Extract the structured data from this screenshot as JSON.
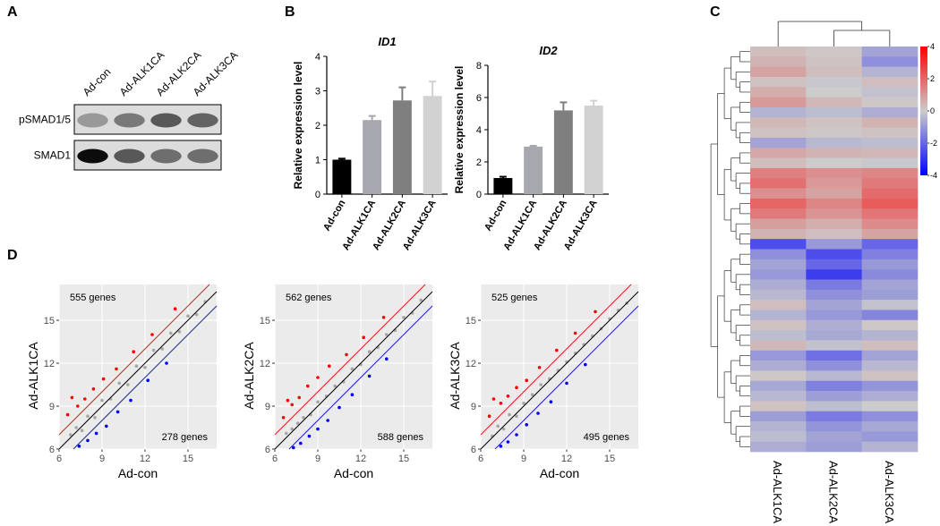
{
  "panel_labels": [
    "A",
    "B",
    "C",
    "D"
  ],
  "blot": {
    "lanes": [
      "Ad-con",
      "Ad-ALK1CA",
      "Ad-ALK2CA",
      "Ad-ALK3CA"
    ],
    "rows": [
      {
        "label": "pSMAD1/5",
        "intensity": [
          0.3,
          0.45,
          0.6,
          0.55
        ]
      },
      {
        "label": "SMAD1",
        "intensity": [
          0.95,
          0.6,
          0.5,
          0.5
        ]
      }
    ]
  },
  "chart_data": [
    {
      "type": "bar",
      "title": "ID1",
      "ylabel": "Relative expression level",
      "categories": [
        "Ad-con",
        "Ad-ALK1CA",
        "Ad-ALK2CA",
        "Ad-ALK3CA"
      ],
      "values": [
        1.0,
        2.15,
        2.72,
        2.85
      ],
      "errors": [
        0.03,
        0.12,
        0.38,
        0.42
      ],
      "colors": [
        "#000000",
        "#a7a7af",
        "#7f7f7f",
        "#d2d2d2"
      ],
      "ylim": [
        0,
        4
      ],
      "yticks": [
        0,
        1,
        2,
        3,
        4
      ]
    },
    {
      "type": "bar",
      "title": "ID2",
      "ylabel": "Relative expression level",
      "categories": [
        "Ad-con",
        "Ad-ALK1CA",
        "Ad-ALK2CA",
        "Ad-ALK3CA"
      ],
      "values": [
        1.0,
        2.95,
        5.2,
        5.5
      ],
      "errors": [
        0.08,
        0.05,
        0.5,
        0.3
      ],
      "colors": [
        "#000000",
        "#a7a7af",
        "#7f7f7f",
        "#d2d2d2"
      ],
      "ylim": [
        0,
        8
      ],
      "yticks": [
        0,
        2,
        4,
        6,
        8
      ]
    },
    {
      "type": "heatmap",
      "columns": [
        "Ad-ALK1CA",
        "Ad-ALK2CA",
        "Ad-ALK3CA"
      ],
      "zlim": [
        -4,
        4
      ],
      "zticks": [
        4,
        2,
        0,
        -2,
        -4
      ],
      "colors": [
        "#0000ff",
        "#cccccc",
        "#ff0000"
      ],
      "values": [
        [
          0.3,
          0.1,
          -0.8
        ],
        [
          0.5,
          0.2,
          -1.2
        ],
        [
          0.8,
          0.3,
          -0.5
        ],
        [
          0.2,
          -0.1,
          0.3
        ],
        [
          0.6,
          0.0,
          -0.2
        ],
        [
          1.0,
          0.4,
          0.1
        ],
        [
          -0.5,
          -0.3,
          -0.6
        ],
        [
          0.4,
          0.2,
          0.5
        ],
        [
          0.2,
          0.1,
          0.2
        ],
        [
          -0.8,
          -0.4,
          -0.3
        ],
        [
          0.7,
          0.5,
          0.4
        ],
        [
          0.3,
          0.0,
          -0.1
        ],
        [
          1.5,
          1.2,
          1.4
        ],
        [
          1.8,
          1.0,
          1.6
        ],
        [
          1.2,
          0.8,
          1.9
        ],
        [
          2.0,
          1.4,
          2.2
        ],
        [
          1.6,
          1.1,
          1.7
        ],
        [
          0.9,
          0.6,
          1.3
        ],
        [
          0.5,
          0.3,
          0.8
        ],
        [
          -2.5,
          -1.0,
          -2.0
        ],
        [
          -1.2,
          -2.5,
          -1.5
        ],
        [
          -0.8,
          -2.0,
          -1.0
        ],
        [
          -1.0,
          -2.8,
          -1.3
        ],
        [
          -0.6,
          -1.6,
          -0.8
        ],
        [
          -0.4,
          -1.2,
          -0.9
        ],
        [
          0.3,
          -0.8,
          -0.2
        ],
        [
          -0.5,
          -1.0,
          -1.4
        ],
        [
          0.2,
          -0.6,
          0.1
        ],
        [
          -0.3,
          -0.7,
          -0.5
        ],
        [
          0.4,
          -0.2,
          0.3
        ],
        [
          -1.0,
          -1.8,
          -0.8
        ],
        [
          -0.6,
          -1.2,
          -0.4
        ],
        [
          0.1,
          -0.4,
          0.2
        ],
        [
          -0.7,
          -1.5,
          -1.1
        ],
        [
          -0.4,
          -0.9,
          -0.6
        ],
        [
          0.2,
          -0.3,
          0.0
        ],
        [
          -0.9,
          -1.6,
          -1.2
        ],
        [
          -0.5,
          -1.1,
          -0.7
        ],
        [
          -0.3,
          -0.8,
          -1.0
        ],
        [
          -0.6,
          -0.9,
          -0.5
        ]
      ]
    },
    {
      "type": "scatter",
      "xlabel": "Ad-con",
      "ylabel": "Ad-ALK1CA",
      "xlim": [
        6,
        17
      ],
      "ylim": [
        6,
        17.5
      ],
      "xticks": [
        6,
        9,
        12,
        15
      ],
      "yticks": [
        6,
        9,
        12,
        15
      ],
      "annotations": [
        {
          "text": "555 genes",
          "position": "top-left"
        },
        {
          "text": "278 genes",
          "position": "bottom-right"
        }
      ],
      "reference_lines": [
        {
          "intercept": 1,
          "color": "#e41a1c"
        },
        {
          "intercept": 0,
          "color": "#000000"
        },
        {
          "intercept": -1,
          "color": "#1f1fc8"
        }
      ],
      "series": [
        {
          "color": "#a6a6a6",
          "x": [
            6.8,
            7.2,
            7.6,
            8.0,
            8.5,
            9.0,
            9.6,
            10.2,
            10.8,
            11.4,
            12.0,
            12.6,
            13.2,
            13.8,
            14.4,
            15.0,
            15.6,
            16.2
          ],
          "y": [
            7.0,
            7.5,
            7.3,
            8.3,
            8.2,
            9.4,
            9.5,
            10.6,
            10.5,
            11.8,
            11.7,
            12.9,
            13.0,
            14.1,
            14.2,
            15.3,
            15.4,
            16.3
          ]
        },
        {
          "color": "#ff0000",
          "x": [
            6.6,
            6.9,
            7.3,
            7.8,
            8.4,
            9.1,
            10.0,
            11.2,
            12.5,
            14.1
          ],
          "y": [
            8.4,
            9.6,
            9.0,
            9.5,
            10.2,
            10.9,
            11.6,
            12.8,
            14.0,
            15.8
          ]
        },
        {
          "color": "#0000ff",
          "x": [
            7.4,
            8.0,
            8.6,
            9.3,
            10.1,
            11.0,
            12.2,
            13.5
          ],
          "y": [
            6.2,
            6.6,
            7.1,
            7.6,
            8.6,
            9.4,
            10.8,
            12.0
          ]
        }
      ]
    },
    {
      "type": "scatter",
      "xlabel": "Ad-con",
      "ylabel": "Ad-ALK2CA",
      "xlim": [
        6,
        17
      ],
      "ylim": [
        6,
        17.5
      ],
      "xticks": [
        6,
        9,
        12,
        15
      ],
      "yticks": [
        6,
        9,
        12,
        15
      ],
      "annotations": [
        {
          "text": "562 genes",
          "position": "top-left"
        },
        {
          "text": "588 genes",
          "position": "bottom-right"
        }
      ],
      "reference_lines": [
        {
          "intercept": 1,
          "color": "#e41a1c"
        },
        {
          "intercept": 0,
          "color": "#000000"
        },
        {
          "intercept": -1,
          "color": "#1f1fc8"
        }
      ],
      "series": [
        {
          "color": "#a6a6a6",
          "x": [
            6.8,
            7.2,
            7.6,
            8.0,
            8.5,
            9.0,
            9.6,
            10.2,
            10.8,
            11.4,
            12.0,
            12.6,
            13.2,
            13.8,
            14.4,
            15.0,
            15.6,
            16.2
          ],
          "y": [
            7.1,
            7.4,
            7.8,
            8.2,
            8.4,
            9.3,
            9.7,
            10.4,
            10.7,
            11.6,
            11.9,
            12.8,
            13.1,
            14.0,
            14.3,
            15.2,
            15.5,
            16.4
          ]
        },
        {
          "color": "#ff0000",
          "x": [
            6.6,
            6.9,
            7.2,
            7.7,
            8.3,
            9.0,
            9.8,
            11.0,
            12.2,
            13.6
          ],
          "y": [
            8.2,
            9.4,
            9.1,
            9.6,
            10.4,
            11.0,
            11.8,
            12.6,
            13.8,
            15.2
          ]
        },
        {
          "color": "#0000ff",
          "x": [
            7.3,
            7.8,
            8.4,
            9.0,
            9.7,
            10.5,
            11.4,
            12.6,
            13.8
          ],
          "y": [
            6.1,
            6.4,
            6.9,
            7.4,
            8.0,
            8.9,
            9.8,
            11.1,
            12.3
          ]
        }
      ]
    },
    {
      "type": "scatter",
      "xlabel": "Ad-con",
      "ylabel": "Ad-ALK3CA",
      "xlim": [
        6,
        17
      ],
      "ylim": [
        6,
        17.5
      ],
      "xticks": [
        6,
        9,
        12,
        15
      ],
      "yticks": [
        6,
        9,
        12,
        15
      ],
      "annotations": [
        {
          "text": "525 genes",
          "position": "top-left"
        },
        {
          "text": "495 genes",
          "position": "bottom-right"
        }
      ],
      "reference_lines": [
        {
          "intercept": 1,
          "color": "#e41a1c"
        },
        {
          "intercept": 0,
          "color": "#000000"
        },
        {
          "intercept": -1,
          "color": "#1f1fc8"
        }
      ],
      "series": [
        {
          "color": "#a6a6a6",
          "x": [
            6.8,
            7.2,
            7.6,
            8.0,
            8.5,
            9.0,
            9.6,
            10.2,
            10.8,
            11.4,
            12.0,
            12.6,
            13.2,
            13.8,
            14.4,
            15.0,
            15.6,
            16.2
          ],
          "y": [
            6.9,
            7.6,
            7.4,
            8.4,
            8.3,
            9.2,
            9.8,
            10.5,
            10.9,
            11.5,
            12.1,
            12.7,
            13.3,
            13.9,
            14.4,
            15.1,
            15.7,
            16.2
          ]
        },
        {
          "color": "#ff0000",
          "x": [
            6.6,
            6.9,
            7.4,
            7.9,
            8.5,
            9.2,
            10.1,
            11.3,
            12.6,
            14.0
          ],
          "y": [
            8.3,
            9.5,
            9.2,
            9.7,
            10.3,
            10.8,
            11.7,
            12.9,
            14.1,
            15.6
          ]
        },
        {
          "color": "#0000ff",
          "x": [
            7.4,
            7.9,
            8.5,
            9.2,
            10.0,
            10.9,
            12.0,
            13.3
          ],
          "y": [
            6.2,
            6.5,
            7.0,
            7.7,
            8.5,
            9.3,
            10.6,
            11.9
          ]
        }
      ]
    }
  ]
}
